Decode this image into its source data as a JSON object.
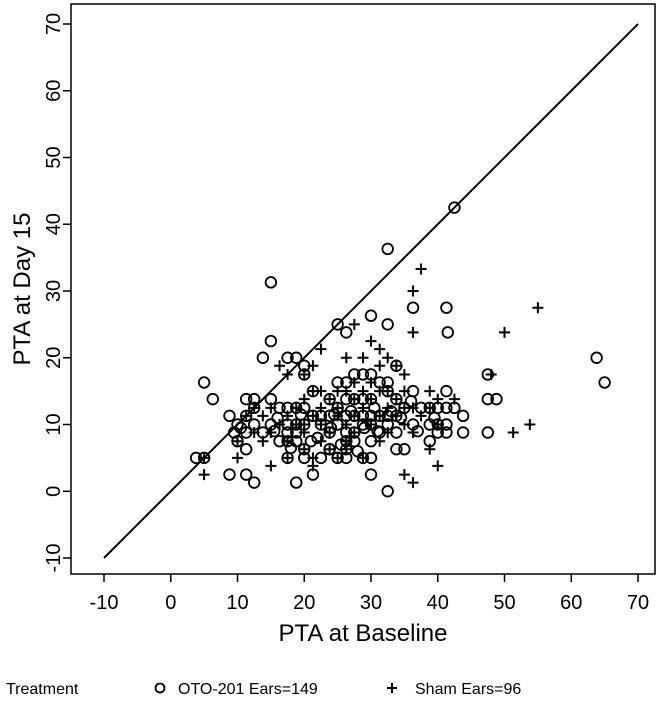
{
  "chart_data": {
    "type": "scatter",
    "xlabel": "PTA at Baseline",
    "ylabel": "PTA at Day 15",
    "xlim": [
      -10,
      70
    ],
    "ylim": [
      -10,
      70
    ],
    "x_ticks": [
      "-10",
      "0",
      "10",
      "20",
      "30",
      "40",
      "50",
      "60",
      "70"
    ],
    "y_ticks": [
      "-10",
      "0",
      "10",
      "20",
      "30",
      "40",
      "50",
      "60",
      "70"
    ],
    "grid": false,
    "reference_line": {
      "from": [
        -10,
        -10
      ],
      "to": [
        70,
        70
      ]
    },
    "legend": {
      "position": "bottom",
      "title": "Treatment",
      "entries": [
        {
          "marker": "circle",
          "label": "OTO-201 Ears=149"
        },
        {
          "marker": "plus",
          "label": "Sham Ears=96"
        }
      ]
    },
    "series": [
      {
        "name": "OTO-201 Ears=149",
        "marker": "circle",
        "points": [
          [
            42.5,
            42.5
          ],
          [
            32.5,
            36.3
          ],
          [
            15.0,
            31.3
          ],
          [
            41.3,
            27.5
          ],
          [
            36.3,
            27.5
          ],
          [
            30.0,
            26.3
          ],
          [
            25.0,
            25.0
          ],
          [
            32.5,
            25.0
          ],
          [
            41.5,
            23.8
          ],
          [
            26.3,
            23.8
          ],
          [
            15.0,
            22.5
          ],
          [
            13.8,
            20.0
          ],
          [
            17.5,
            20.0
          ],
          [
            18.8,
            20.0
          ],
          [
            20.0,
            18.8
          ],
          [
            63.8,
            20.0
          ],
          [
            65.0,
            16.3
          ],
          [
            5.0,
            16.3
          ],
          [
            6.3,
            13.8
          ],
          [
            8.8,
            11.3
          ],
          [
            11.3,
            13.8
          ],
          [
            12.5,
            13.8
          ],
          [
            10.0,
            10.0
          ],
          [
            11.3,
            11.3
          ],
          [
            12.5,
            12.5
          ],
          [
            11.3,
            8.8
          ],
          [
            10.0,
            7.5
          ],
          [
            11.3,
            6.3
          ],
          [
            3.8,
            5.0
          ],
          [
            5.0,
            5.0
          ],
          [
            8.8,
            2.5
          ],
          [
            11.3,
            2.5
          ],
          [
            12.5,
            1.3
          ],
          [
            15.0,
            13.8
          ],
          [
            15.0,
            10.0
          ],
          [
            16.3,
            12.5
          ],
          [
            17.5,
            12.5
          ],
          [
            18.8,
            12.5
          ],
          [
            20.0,
            12.5
          ],
          [
            17.5,
            10.0
          ],
          [
            18.8,
            10.0
          ],
          [
            20.0,
            10.0
          ],
          [
            17.5,
            7.5
          ],
          [
            18.8,
            7.5
          ],
          [
            17.5,
            5.0
          ],
          [
            20.0,
            5.0
          ],
          [
            21.3,
            2.5
          ],
          [
            18.8,
            1.3
          ],
          [
            21.3,
            15.0
          ],
          [
            22.5,
            11.3
          ],
          [
            23.8,
            11.3
          ],
          [
            22.5,
            10.0
          ],
          [
            23.8,
            8.8
          ],
          [
            25.0,
            12.5
          ],
          [
            25.0,
            10.0
          ],
          [
            26.3,
            13.8
          ],
          [
            26.3,
            16.3
          ],
          [
            25.0,
            16.3
          ],
          [
            27.5,
            17.5
          ],
          [
            28.8,
            17.5
          ],
          [
            30.0,
            17.5
          ],
          [
            26.3,
            11.3
          ],
          [
            27.5,
            11.3
          ],
          [
            28.8,
            11.3
          ],
          [
            30.0,
            11.3
          ],
          [
            26.3,
            8.8
          ],
          [
            27.5,
            8.8
          ],
          [
            28.8,
            10.0
          ],
          [
            30.0,
            10.0
          ],
          [
            30.0,
            7.5
          ],
          [
            26.3,
            7.5
          ],
          [
            27.5,
            7.5
          ],
          [
            23.8,
            6.3
          ],
          [
            25.0,
            5.0
          ],
          [
            26.3,
            5.0
          ],
          [
            28.8,
            5.0
          ],
          [
            30.0,
            5.0
          ],
          [
            30.0,
            2.5
          ],
          [
            32.5,
            0.0
          ],
          [
            31.3,
            16.3
          ],
          [
            32.5,
            15.0
          ],
          [
            33.8,
            13.8
          ],
          [
            33.8,
            11.3
          ],
          [
            32.5,
            10.0
          ],
          [
            31.3,
            11.3
          ],
          [
            32.5,
            11.3
          ],
          [
            33.8,
            6.3
          ],
          [
            35.0,
            6.3
          ],
          [
            33.8,
            18.8
          ],
          [
            36.3,
            15.0
          ],
          [
            37.5,
            12.5
          ],
          [
            38.8,
            12.5
          ],
          [
            40.0,
            12.5
          ],
          [
            41.3,
            12.5
          ],
          [
            42.5,
            12.5
          ],
          [
            38.8,
            10.0
          ],
          [
            40.0,
            10.0
          ],
          [
            41.3,
            10.0
          ],
          [
            43.8,
            11.3
          ],
          [
            38.8,
            7.5
          ],
          [
            40.0,
            8.8
          ],
          [
            41.3,
            8.8
          ],
          [
            43.8,
            8.8
          ],
          [
            41.3,
            15.0
          ],
          [
            47.5,
            17.5
          ],
          [
            47.5,
            13.8
          ],
          [
            48.8,
            13.8
          ],
          [
            47.5,
            8.8
          ],
          [
            23.8,
            6.3
          ],
          [
            31.3,
            8.8
          ],
          [
            20.0,
            6.3
          ],
          [
            18.8,
            8.8
          ],
          [
            35.0,
            12.5
          ],
          [
            28.8,
            13.8
          ],
          [
            22.5,
            5.0
          ],
          [
            16.3,
            7.5
          ],
          [
            17.5,
            8.8
          ],
          [
            21.3,
            11.3
          ],
          [
            12.5,
            10.0
          ],
          [
            13.8,
            8.8
          ],
          [
            36.3,
            10.0
          ],
          [
            33.8,
            8.8
          ],
          [
            26.3,
            6.3
          ],
          [
            27.5,
            13.8
          ],
          [
            32.5,
            16.3
          ],
          [
            23.8,
            13.8
          ],
          [
            30.0,
            13.8
          ],
          [
            20.0,
            17.5
          ],
          [
            9.5,
            8.8
          ],
          [
            10.5,
            9.5
          ],
          [
            16.0,
            11.0
          ],
          [
            19.5,
            11.5
          ],
          [
            24.0,
            9.5
          ],
          [
            29.0,
            9.5
          ],
          [
            31.0,
            9.0
          ],
          [
            37.0,
            9.0
          ],
          [
            22.0,
            8.0
          ],
          [
            25.5,
            7.0
          ],
          [
            28.0,
            6.0
          ],
          [
            34.5,
            11.0
          ],
          [
            39.5,
            11.0
          ],
          [
            15.5,
            9.0
          ],
          [
            21.0,
            7.5
          ],
          [
            27.0,
            12.0
          ],
          [
            33.0,
            12.0
          ],
          [
            18.0,
            6.5
          ],
          [
            24.5,
            11.5
          ],
          [
            36.0,
            13.5
          ],
          [
            30.5,
            12.5
          ]
        ]
      },
      {
        "name": "Sham Ears=96",
        "marker": "plus",
        "points": [
          [
            37.5,
            33.3
          ],
          [
            36.3,
            30.0
          ],
          [
            55.0,
            27.5
          ],
          [
            50.0,
            23.8
          ],
          [
            36.3,
            23.8
          ],
          [
            30.0,
            22.5
          ],
          [
            22.5,
            21.3
          ],
          [
            31.3,
            21.3
          ],
          [
            27.5,
            25.0
          ],
          [
            28.8,
            20.0
          ],
          [
            32.5,
            20.0
          ],
          [
            26.3,
            20.0
          ],
          [
            21.3,
            18.8
          ],
          [
            16.3,
            18.8
          ],
          [
            17.5,
            17.5
          ],
          [
            20.0,
            17.5
          ],
          [
            31.3,
            18.8
          ],
          [
            33.8,
            18.8
          ],
          [
            27.5,
            16.3
          ],
          [
            30.0,
            16.3
          ],
          [
            35.0,
            17.5
          ],
          [
            48.0,
            17.5
          ],
          [
            21.3,
            15.0
          ],
          [
            22.5,
            15.0
          ],
          [
            25.0,
            15.0
          ],
          [
            26.3,
            15.0
          ],
          [
            28.8,
            15.0
          ],
          [
            31.3,
            15.0
          ],
          [
            32.5,
            15.0
          ],
          [
            35.0,
            15.0
          ],
          [
            38.8,
            15.0
          ],
          [
            42.5,
            13.8
          ],
          [
            40.0,
            13.8
          ],
          [
            20.0,
            13.8
          ],
          [
            23.8,
            13.8
          ],
          [
            27.5,
            13.8
          ],
          [
            30.0,
            13.8
          ],
          [
            33.8,
            13.8
          ],
          [
            36.3,
            12.5
          ],
          [
            12.5,
            12.5
          ],
          [
            15.0,
            12.5
          ],
          [
            18.8,
            12.5
          ],
          [
            22.5,
            12.5
          ],
          [
            25.0,
            12.5
          ],
          [
            28.8,
            12.5
          ],
          [
            32.5,
            12.5
          ],
          [
            35.0,
            12.5
          ],
          [
            38.8,
            12.5
          ],
          [
            11.3,
            11.3
          ],
          [
            13.8,
            11.3
          ],
          [
            17.5,
            11.3
          ],
          [
            21.3,
            11.3
          ],
          [
            25.0,
            11.3
          ],
          [
            27.5,
            11.3
          ],
          [
            31.3,
            11.3
          ],
          [
            33.8,
            11.3
          ],
          [
            37.5,
            11.3
          ],
          [
            16.3,
            10.0
          ],
          [
            18.8,
            10.0
          ],
          [
            22.5,
            10.0
          ],
          [
            26.3,
            10.0
          ],
          [
            30.0,
            10.0
          ],
          [
            35.0,
            10.0
          ],
          [
            40.0,
            10.0
          ],
          [
            12.5,
            8.8
          ],
          [
            15.0,
            8.8
          ],
          [
            20.0,
            8.8
          ],
          [
            23.8,
            8.8
          ],
          [
            27.5,
            8.8
          ],
          [
            32.5,
            8.8
          ],
          [
            36.3,
            8.8
          ],
          [
            51.3,
            8.8
          ],
          [
            53.8,
            10.0
          ],
          [
            10.0,
            7.5
          ],
          [
            13.8,
            7.5
          ],
          [
            17.5,
            7.5
          ],
          [
            22.5,
            7.5
          ],
          [
            26.3,
            7.5
          ],
          [
            31.3,
            7.5
          ],
          [
            38.8,
            6.3
          ],
          [
            20.0,
            6.3
          ],
          [
            23.8,
            6.3
          ],
          [
            17.5,
            5.0
          ],
          [
            21.3,
            5.0
          ],
          [
            25.0,
            5.0
          ],
          [
            28.8,
            5.0
          ],
          [
            10.0,
            5.0
          ],
          [
            5.0,
            5.0
          ],
          [
            15.0,
            3.8
          ],
          [
            21.3,
            3.8
          ],
          [
            40.0,
            3.8
          ],
          [
            35.0,
            2.5
          ],
          [
            5.0,
            2.5
          ],
          [
            36.3,
            1.3
          ],
          [
            20.0,
            10.0
          ],
          [
            26.3,
            6.3
          ]
        ]
      }
    ]
  }
}
